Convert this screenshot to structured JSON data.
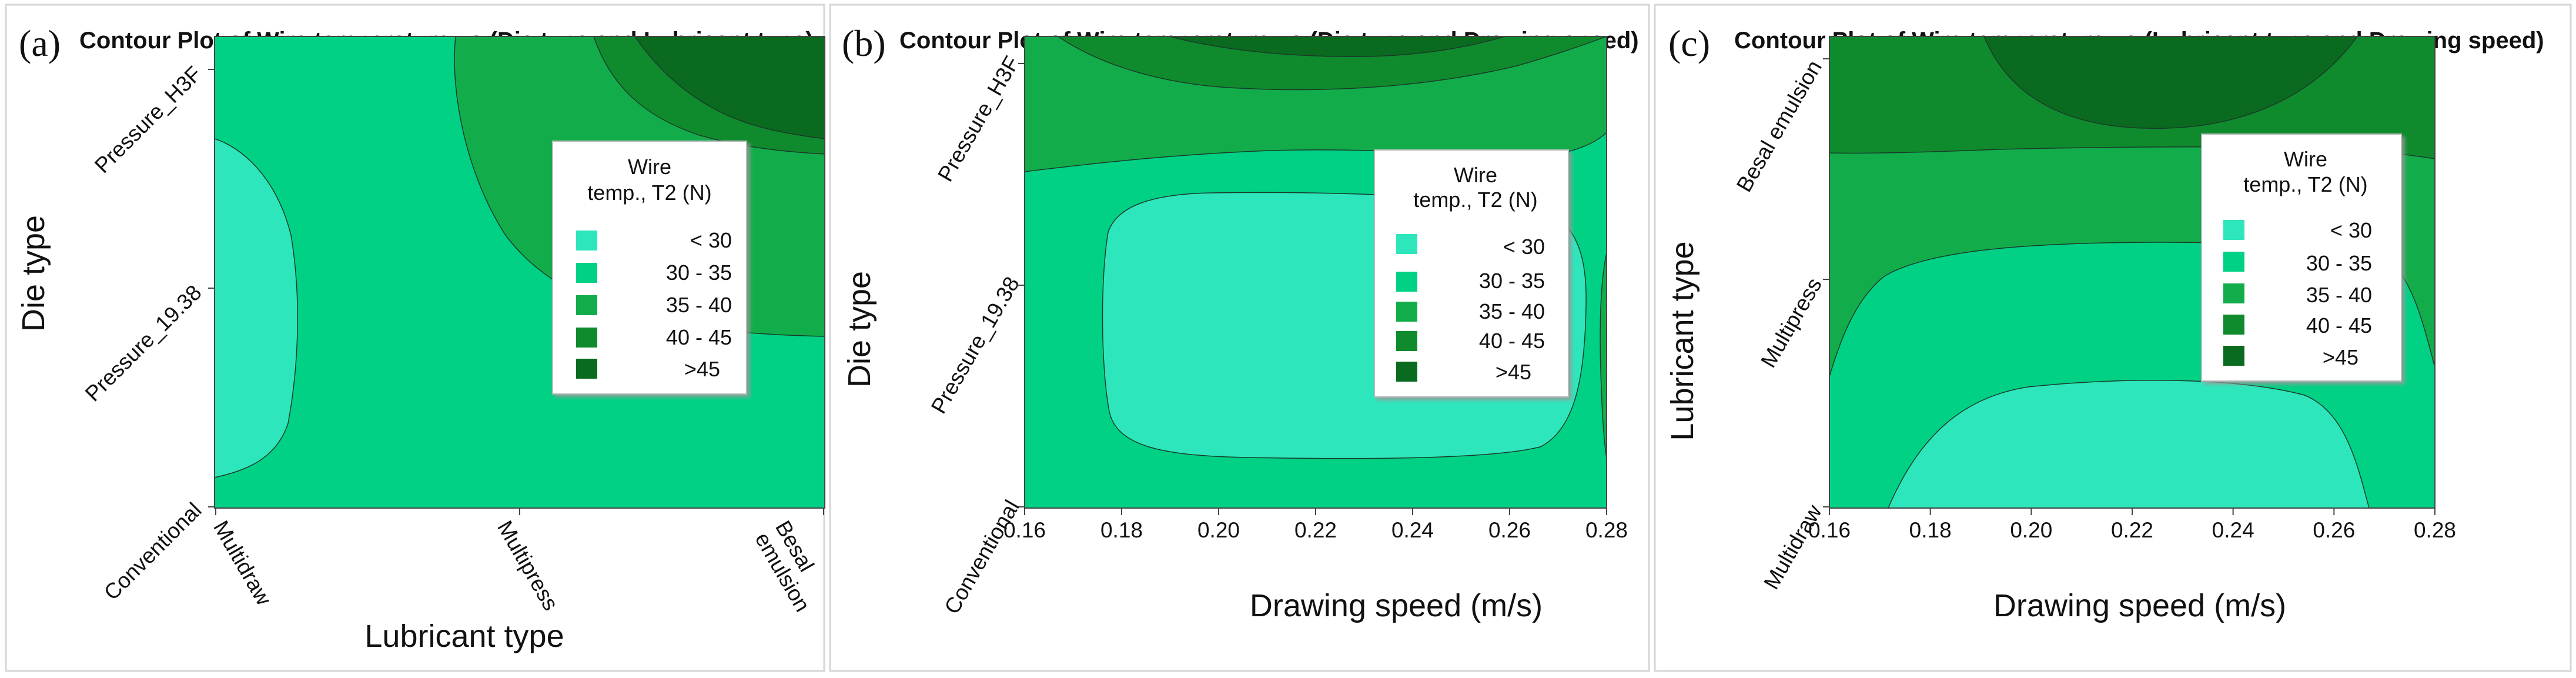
{
  "colors": {
    "lt30": "#2ee6bc",
    "c30_35": "#00d185",
    "c35_40": "#12ad4a",
    "c40_45": "#0f8b2d",
    "gt45": "#0a6a1f",
    "border": "#000000"
  },
  "chart_data": [
    {
      "type": "contour",
      "panel_label": "(a)",
      "title": "Contour Plot of Wire temperature vs (Die type and Lubricant type)",
      "xlabel": "Lubricant type",
      "ylabel": "Die type",
      "x_ticks": [
        "Multidraw",
        "Multipress",
        "Besal emulsion"
      ],
      "y_ticks": [
        "Conventional",
        "Pressure_19.38",
        "Pressure_H3F"
      ],
      "legend": {
        "title_line1": "Wire",
        "title_line2": "temp., T2 (N)",
        "levels": [
          "< 30",
          "30 - 35",
          "35 - 40",
          "40 - 45",
          ">45"
        ],
        "placement": "right"
      }
    },
    {
      "type": "contour",
      "panel_label": "(b)",
      "title": "Contour Plot of Wire temperature vs (Die type and Drawing speed)",
      "xlabel": "Drawing speed (m/s)",
      "ylabel": "Die type",
      "x_ticks": [
        "0.16",
        "0.18",
        "0.20",
        "0.22",
        "0.24",
        "0.26",
        "0.28"
      ],
      "xlim": [
        0.16,
        0.28
      ],
      "y_ticks": [
        "Conventional",
        "Pressure_19.38",
        "Pressure_H3F"
      ],
      "legend": {
        "title_line1": "Wire",
        "title_line2": "temp., T2 (N)",
        "levels": [
          "< 30",
          "30 - 35",
          "35 - 40",
          "40 - 45",
          ">45"
        ],
        "placement": "right"
      }
    },
    {
      "type": "contour",
      "panel_label": "(c)",
      "title": "Contour Plot of Wire temperature vs (Lubricant type and Drawing speed)",
      "xlabel": "Drawing speed (m/s)",
      "ylabel": "Lubricant  type",
      "x_ticks": [
        "0.16",
        "0.18",
        "0.20",
        "0.22",
        "0.24",
        "0.26",
        "0.28"
      ],
      "xlim": [
        0.16,
        0.28
      ],
      "y_ticks": [
        "Multidraw",
        "Multipress",
        "Besal emulsion"
      ],
      "legend": {
        "title_line1": "Wire",
        "title_line2": "temp., T2 (N)",
        "levels": [
          "< 30",
          "30 - 35",
          "35 - 40",
          "40 - 45",
          ">45"
        ],
        "placement": "right"
      }
    }
  ]
}
